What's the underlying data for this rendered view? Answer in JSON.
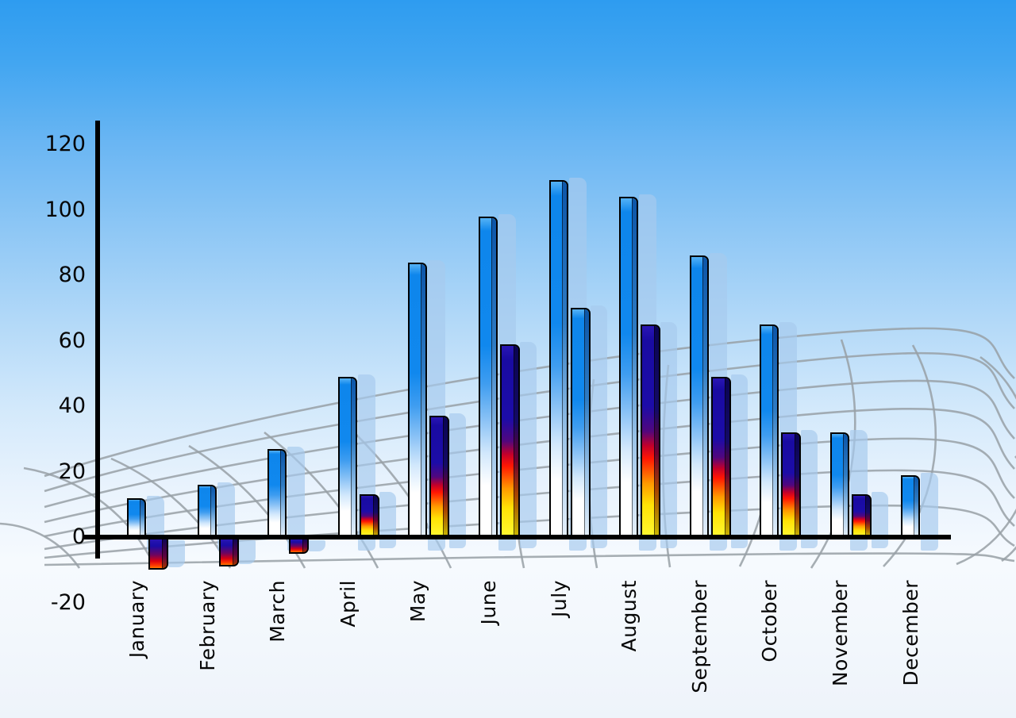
{
  "chart_data": {
    "type": "bar",
    "title": "",
    "categories": [
      "January",
      "February",
      "March",
      "April",
      "May",
      "June",
      "July",
      "August",
      "September",
      "October",
      "November",
      "December"
    ],
    "series": [
      {
        "name": "primary-tall-bars",
        "style": "blue",
        "values": [
          12,
          16,
          27,
          49,
          84,
          98,
          109,
          104,
          86,
          65,
          32,
          19
        ]
      },
      {
        "name": "secondary-short-bars",
        "style": "fire",
        "values": [
          -10,
          -9,
          -5,
          13,
          37,
          59,
          70,
          65,
          49,
          32,
          13,
          null
        ],
        "point_styles": [
          "fire",
          "fire",
          "fire",
          "fire",
          "fire",
          "fire",
          "blue",
          "fire",
          "fire",
          "fire",
          "fire",
          null
        ]
      }
    ],
    "xlabel": "",
    "ylabel": "",
    "ylim": [
      -20,
      120
    ],
    "y_ticks": [
      120,
      100,
      80,
      60,
      40,
      20,
      0,
      -20
    ],
    "legend": "none",
    "grid": "gray perspective mesh behind bars",
    "background": "sky blue gradient fading to white"
  },
  "axis": {
    "y_tick_labels": [
      "120",
      "100",
      "80",
      "60",
      "40",
      "20",
      "0",
      "-20"
    ]
  },
  "colors": {
    "sky_top": "#2e9cf0",
    "sky_bottom": "#eef3fa",
    "bar_blue": "#0e86ec",
    "fire_navy": "#1c0ca8",
    "fire_red": "#ff1603",
    "fire_yellow": "#ffe205",
    "bar_shadow": "#a6caee",
    "mesh_line": "#98a0a6",
    "axis_line": "#000000",
    "label_text": "#000000"
  }
}
